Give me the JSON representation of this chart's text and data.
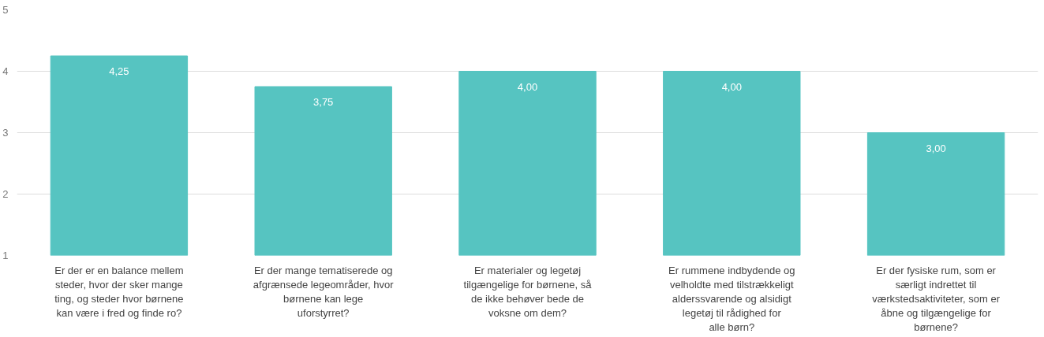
{
  "chart_data": {
    "type": "bar",
    "categories": [
      "Er der er en balance mellem steder, hvor der sker mange ting, og steder hvor børnene kan være i fred og finde ro?",
      "Er der mange tematiserede og afgrænsede legeområder, hvor børnene kan lege uforstyrret?",
      "Er materialer og legetøj tilgængelige for børnene, så de ikke behøver bede de voksne om dem?",
      "Er rummene indbydende og velholdte med tilstrækkeligt alderssvarende og alsidigt legetøj til rådighed for alle børn?",
      "Er der fysiske rum, som er særligt indrettet til værkstedsaktiviteter, som er åbne og tilgængelige for børnene?"
    ],
    "values": [
      4.25,
      3.75,
      4.0,
      4.0,
      3.0
    ],
    "value_labels": [
      "4,25",
      "3,75",
      "4,00",
      "4,00",
      "3,00"
    ],
    "color": "#56c4c1",
    "ylim": [
      1,
      5
    ],
    "yticks": [
      1,
      2,
      3,
      4,
      5
    ],
    "grid": "y"
  }
}
